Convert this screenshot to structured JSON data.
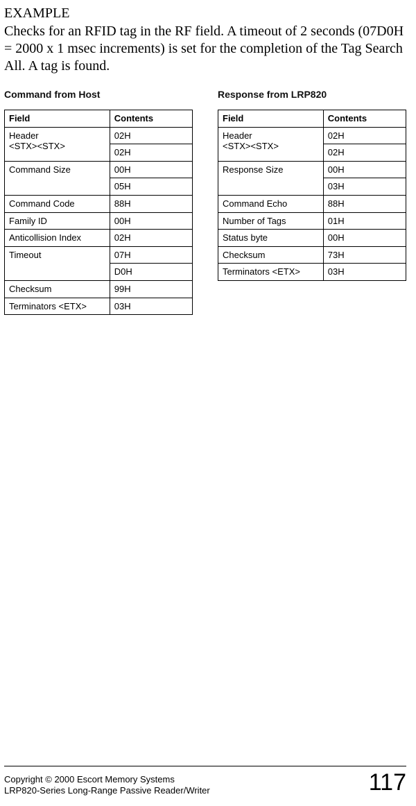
{
  "heading": "EXAMPLE",
  "body": "Checks for an RFID tag in the RF field. A timeout of 2 seconds (07D0H = 2000 x 1 msec increments) is set for the completion of the Tag Search All. A tag is found.",
  "left": {
    "title": "Command from Host",
    "headers": {
      "field": "Field",
      "contents": "Contents"
    },
    "rows": [
      {
        "field": "Header\n<STX><STX>",
        "contents": "02H",
        "span": 2
      },
      {
        "contents": "02H"
      },
      {
        "field": "Command Size",
        "contents": "00H",
        "span": 2
      },
      {
        "contents": "05H"
      },
      {
        "field": "Command Code",
        "contents": "88H"
      },
      {
        "field": "Family ID",
        "contents": "00H"
      },
      {
        "field": "Anticollision Index",
        "contents": "02H"
      },
      {
        "field": "Timeout",
        "contents": "07H",
        "span": 2
      },
      {
        "contents": "D0H"
      },
      {
        "field": "Checksum",
        "contents": "99H"
      },
      {
        "field": "Terminators <ETX>",
        "contents": "03H"
      }
    ]
  },
  "right": {
    "title": "Response from LRP820",
    "headers": {
      "field": "Field",
      "contents": "Contents"
    },
    "rows": [
      {
        "field": "Header\n<STX><STX>",
        "contents": "02H",
        "span": 2
      },
      {
        "contents": "02H"
      },
      {
        "field": "Response Size",
        "contents": "00H",
        "span": 2
      },
      {
        "contents": "03H"
      },
      {
        "field": "Command Echo",
        "contents": "88H"
      },
      {
        "field": "Number of Tags",
        "contents": "01H"
      },
      {
        "field": "Status byte",
        "contents": "00H"
      },
      {
        "field": "Checksum",
        "contents": "73H"
      },
      {
        "field": "Terminators <ETX>",
        "contents": "03H"
      }
    ]
  },
  "footer": {
    "line1": "Copyright © 2000 Escort Memory Systems",
    "line2": "LRP820-Series Long-Range Passive Reader/Writer",
    "page": "117"
  }
}
